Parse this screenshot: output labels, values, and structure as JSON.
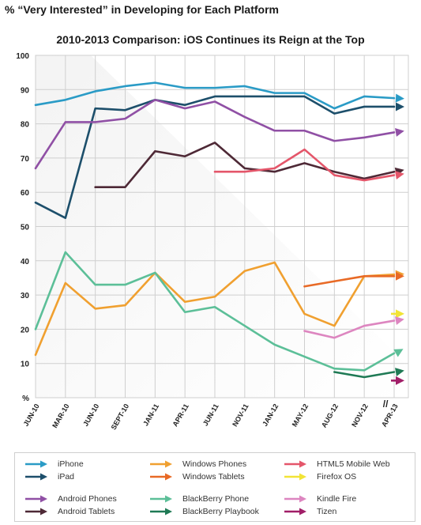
{
  "page_title": "% “Very Interested” in Developing for Each Platform",
  "chart_data": {
    "type": "line",
    "title": "2010-2013 Comparison: iOS Continues its Reign at the Top",
    "xlabel": "",
    "ylabel": "%",
    "ylim": [
      0,
      100
    ],
    "yticks": [
      "100",
      "90",
      "80",
      "70",
      "60",
      "50",
      "40",
      "30",
      "20",
      "10",
      "%"
    ],
    "grid": true,
    "legend_position": "bottom",
    "categories": [
      "JUN-10",
      "MAR-10",
      "JUN-10",
      "SEPT-10",
      "JAN-11",
      "APR-11",
      "JUN-11",
      "NOV-11",
      "JAN-12",
      "MAY-12",
      "AUG-12",
      "NOV-12",
      "APR-13"
    ],
    "axis_break_label": "//",
    "series": [
      {
        "name": "iPhone",
        "color": "#2a9bc6",
        "values": [
          85.5,
          87,
          89.5,
          91,
          92,
          90.5,
          90.5,
          91,
          89,
          89,
          84.5,
          88,
          87.5
        ]
      },
      {
        "name": "iPad",
        "color": "#1d4f6b",
        "values": [
          57,
          52.5,
          84.5,
          84,
          87,
          85.5,
          88,
          88,
          88,
          88,
          83,
          85,
          85
        ]
      },
      {
        "name": "Android Phones",
        "color": "#9050a5",
        "values": [
          67,
          80.5,
          80.5,
          81.5,
          87,
          84.5,
          86.5,
          82,
          78,
          78,
          75,
          76,
          77.5
        ]
      },
      {
        "name": "Android Tablets",
        "color": "#4e2936",
        "values": [
          null,
          null,
          61.5,
          61.5,
          72,
          70.5,
          74.5,
          67,
          66,
          68.5,
          66,
          64,
          66
        ]
      },
      {
        "name": "HTML5 Mobile Web",
        "color": "#e4566a",
        "values": [
          null,
          null,
          null,
          null,
          null,
          null,
          66,
          66,
          67,
          72.5,
          65,
          63.5,
          65
        ]
      },
      {
        "name": "Windows Phones",
        "color": "#f0a030",
        "values": [
          12.5,
          33.5,
          26,
          27,
          36.5,
          28,
          29.5,
          37,
          39.5,
          24.5,
          21,
          35.5,
          36
        ]
      },
      {
        "name": "Windows Tablets",
        "color": "#e86a26",
        "values": [
          null,
          null,
          null,
          null,
          null,
          null,
          null,
          null,
          null,
          32.5,
          34,
          35.5,
          35.5
        ]
      },
      {
        "name": "BlackBerry Phone",
        "color": "#5cbf98",
        "values": [
          20,
          42.5,
          33,
          33,
          36.5,
          25,
          26.5,
          21,
          15.5,
          12,
          8.5,
          8,
          13
        ]
      },
      {
        "name": "BlackBerry Playbook",
        "color": "#1f7a55",
        "values": [
          null,
          null,
          null,
          null,
          null,
          null,
          null,
          null,
          null,
          null,
          7.5,
          6,
          7.5
        ]
      },
      {
        "name": "Firefox OS",
        "color": "#f2e436",
        "values": [
          null,
          null,
          null,
          null,
          null,
          null,
          null,
          null,
          null,
          null,
          null,
          null,
          24.5
        ]
      },
      {
        "name": "Kindle Fire",
        "color": "#dd86c0",
        "values": [
          null,
          null,
          null,
          null,
          null,
          null,
          null,
          null,
          null,
          19.5,
          17.5,
          21,
          22.5
        ]
      },
      {
        "name": "Tizen",
        "color": "#a11e68",
        "values": [
          null,
          null,
          null,
          null,
          null,
          null,
          null,
          null,
          null,
          null,
          null,
          null,
          5
        ]
      }
    ]
  }
}
